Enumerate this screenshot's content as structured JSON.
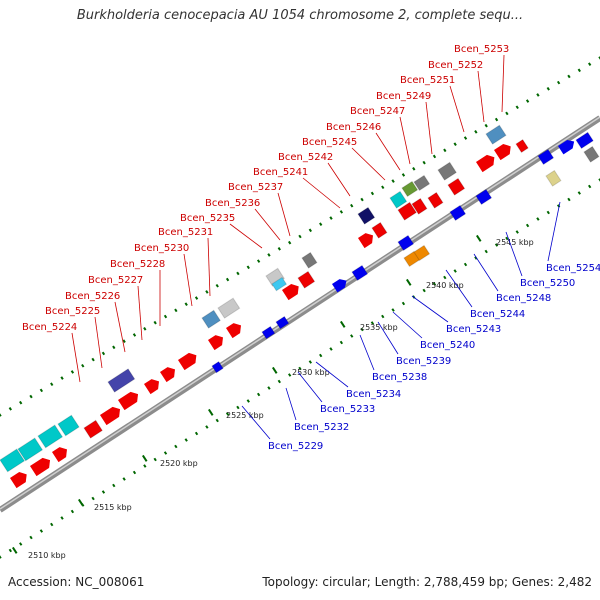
{
  "title": "Burkholderia cenocepacia AU 1054 chromosome 2, complete sequ...",
  "footer": {
    "accession": "Accession: NC_008061",
    "summary": "Topology: circular; Length: 2,788,459 bp; Genes: 2,482"
  },
  "colors": {
    "backbone": "#8c8c8c",
    "forward_label": "#cc0000",
    "reverse_label": "#0000cc",
    "tick": "#006600"
  },
  "ticks": [
    "2510 kbp",
    "2515 kbp",
    "2520 kbp",
    "2525 kbp",
    "2530 kbp",
    "2535 kbp",
    "2540 kbp",
    "2545 kbp"
  ],
  "forward_genes": [
    "Bcen_5224",
    "Bcen_5225",
    "Bcen_5226",
    "Bcen_5227",
    "Bcen_5228",
    "Bcen_5230",
    "Bcen_5231",
    "Bcen_5235",
    "Bcen_5236",
    "Bcen_5237",
    "Bcen_5241",
    "Bcen_5242",
    "Bcen_5245",
    "Bcen_5246",
    "Bcen_5247",
    "Bcen_5249",
    "Bcen_5251",
    "Bcen_5252",
    "Bcen_5253"
  ],
  "reverse_genes": [
    "Bcen_5229",
    "Bcen_5232",
    "Bcen_5233",
    "Bcen_5234",
    "Bcen_5238",
    "Bcen_5239",
    "Bcen_5240",
    "Bcen_5243",
    "Bcen_5244",
    "Bcen_5248",
    "Bcen_5250",
    "Bcen_5254"
  ]
}
